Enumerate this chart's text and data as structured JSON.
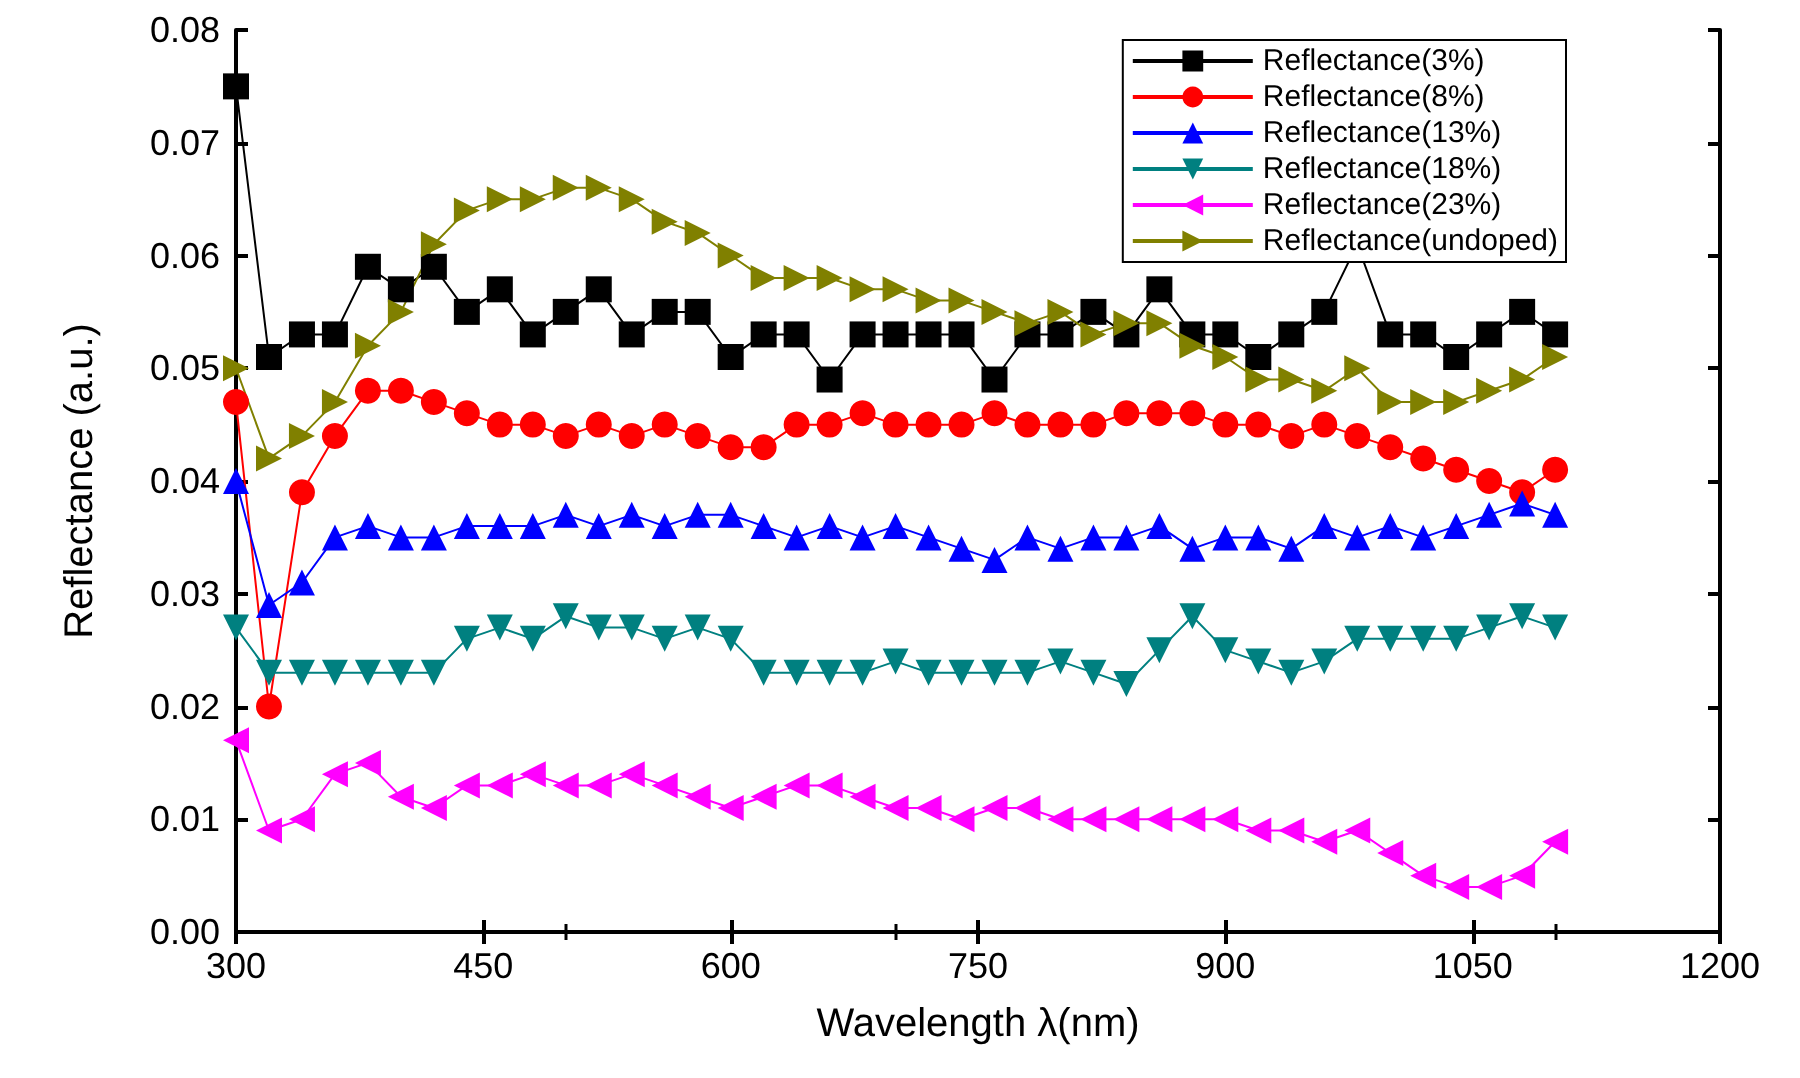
{
  "chart_data": {
    "type": "line",
    "xlabel": "Wavelength λ(nm)",
    "ylabel": "Reflectance (a.u.)",
    "x": [
      300,
      320,
      340,
      360,
      380,
      400,
      420,
      440,
      460,
      480,
      500,
      520,
      540,
      560,
      580,
      600,
      620,
      640,
      660,
      680,
      700,
      720,
      740,
      760,
      780,
      800,
      820,
      840,
      860,
      880,
      900,
      920,
      940,
      960,
      980,
      1000,
      1020,
      1040,
      1060,
      1080,
      1100
    ],
    "series": [
      {
        "name": "Reflectance(3%)",
        "color": "#000000",
        "marker": "square",
        "values": [
          0.075,
          0.051,
          0.053,
          0.053,
          0.059,
          0.057,
          0.059,
          0.055,
          0.057,
          0.053,
          0.055,
          0.057,
          0.053,
          0.055,
          0.055,
          0.051,
          0.053,
          0.053,
          0.049,
          0.053,
          0.053,
          0.053,
          0.053,
          0.049,
          0.053,
          0.053,
          0.055,
          0.053,
          0.057,
          0.053,
          0.053,
          0.051,
          0.053,
          0.055,
          0.061,
          0.053,
          0.053,
          0.051,
          0.053,
          0.055,
          0.053
        ]
      },
      {
        "name": "Reflectance(8%)",
        "color": "#ff0000",
        "marker": "circle",
        "values": [
          0.047,
          0.02,
          0.039,
          0.044,
          0.048,
          0.048,
          0.047,
          0.046,
          0.045,
          0.045,
          0.044,
          0.045,
          0.044,
          0.045,
          0.044,
          0.043,
          0.043,
          0.045,
          0.045,
          0.046,
          0.045,
          0.045,
          0.045,
          0.046,
          0.045,
          0.045,
          0.045,
          0.046,
          0.046,
          0.046,
          0.045,
          0.045,
          0.044,
          0.045,
          0.044,
          0.043,
          0.042,
          0.041,
          0.04,
          0.039,
          0.041
        ]
      },
      {
        "name": "Reflectance(13%)",
        "color": "#0000ff",
        "marker": "triangle",
        "values": [
          0.04,
          0.029,
          0.031,
          0.035,
          0.036,
          0.035,
          0.035,
          0.036,
          0.036,
          0.036,
          0.037,
          0.036,
          0.037,
          0.036,
          0.037,
          0.037,
          0.036,
          0.035,
          0.036,
          0.035,
          0.036,
          0.035,
          0.034,
          0.033,
          0.035,
          0.034,
          0.035,
          0.035,
          0.036,
          0.034,
          0.035,
          0.035,
          0.034,
          0.036,
          0.035,
          0.036,
          0.035,
          0.036,
          0.037,
          0.038,
          0.037
        ]
      },
      {
        "name": "Reflectance(18%)",
        "color": "#008080",
        "marker": "triangle-down",
        "values": [
          0.027,
          0.023,
          0.023,
          0.023,
          0.023,
          0.023,
          0.023,
          0.026,
          0.027,
          0.026,
          0.028,
          0.027,
          0.027,
          0.026,
          0.027,
          0.026,
          0.023,
          0.023,
          0.023,
          0.023,
          0.024,
          0.023,
          0.023,
          0.023,
          0.023,
          0.024,
          0.023,
          0.022,
          0.025,
          0.028,
          0.025,
          0.024,
          0.023,
          0.024,
          0.026,
          0.026,
          0.026,
          0.026,
          0.027,
          0.028,
          0.027
        ]
      },
      {
        "name": "Reflectance(23%)",
        "color": "#ff00ff",
        "marker": "triangle-left",
        "values": [
          0.017,
          0.009,
          0.01,
          0.014,
          0.015,
          0.012,
          0.011,
          0.013,
          0.013,
          0.014,
          0.013,
          0.013,
          0.014,
          0.013,
          0.012,
          0.011,
          0.012,
          0.013,
          0.013,
          0.012,
          0.011,
          0.011,
          0.01,
          0.011,
          0.011,
          0.01,
          0.01,
          0.01,
          0.01,
          0.01,
          0.01,
          0.009,
          0.009,
          0.008,
          0.009,
          0.007,
          0.005,
          0.004,
          0.004,
          0.005,
          0.008
        ]
      },
      {
        "name": "Reflectance(undoped)",
        "color": "#808000",
        "marker": "triangle-right",
        "values": [
          0.05,
          0.042,
          0.044,
          0.047,
          0.052,
          0.055,
          0.061,
          0.064,
          0.065,
          0.065,
          0.066,
          0.066,
          0.065,
          0.063,
          0.062,
          0.06,
          0.058,
          0.058,
          0.058,
          0.057,
          0.057,
          0.056,
          0.056,
          0.055,
          0.054,
          0.055,
          0.053,
          0.054,
          0.054,
          0.052,
          0.051,
          0.049,
          0.049,
          0.048,
          0.05,
          0.047,
          0.047,
          0.047,
          0.048,
          0.049,
          0.051
        ]
      }
    ],
    "xlim": [
      300,
      1200
    ],
    "xticks": [
      300,
      450,
      600,
      750,
      900,
      1050,
      1200
    ],
    "ylim": [
      0,
      0.08
    ],
    "yticks": [
      {
        "value": 0,
        "label": "0.00"
      },
      0.01,
      0.02,
      0.03,
      0.04,
      0.05,
      0.06,
      0.07,
      0.08
    ],
    "grid": false,
    "legend": "top right",
    "line_style": "solid"
  }
}
